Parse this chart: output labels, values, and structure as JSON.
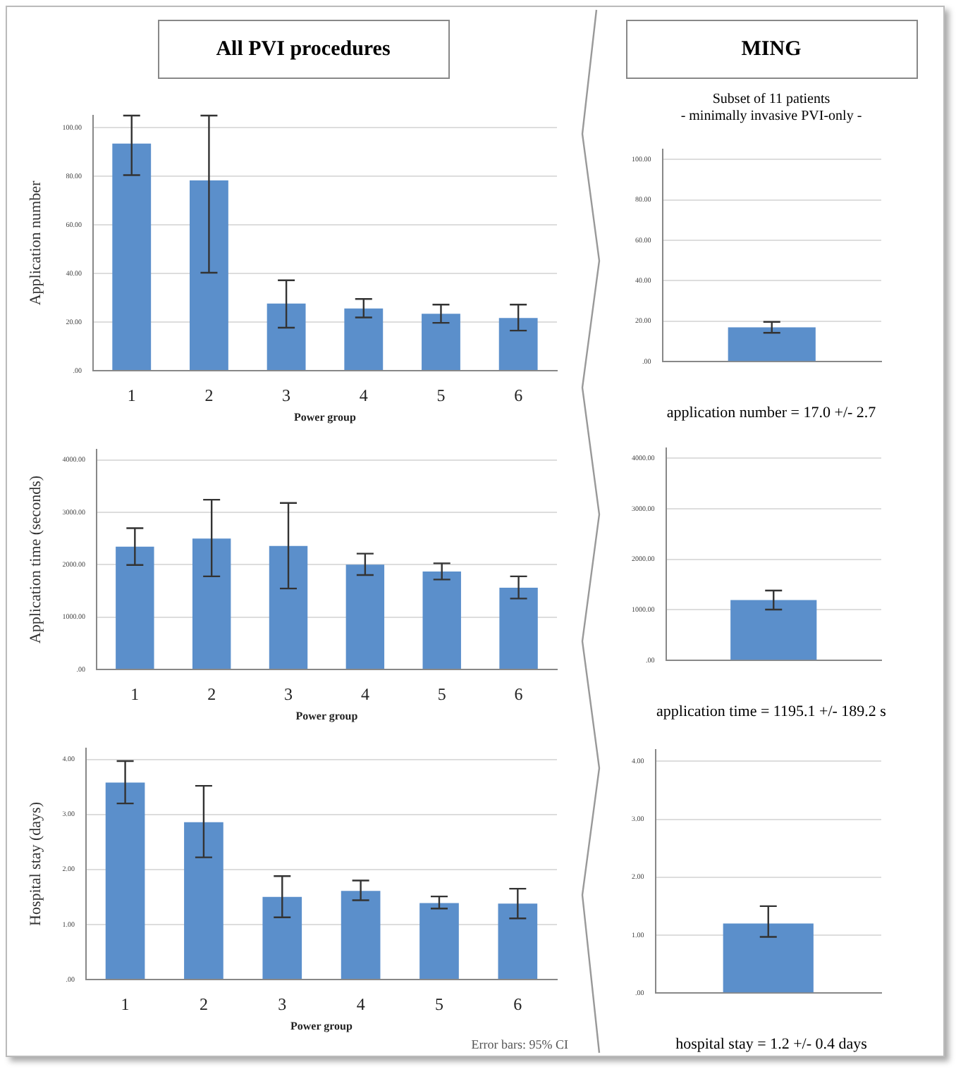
{
  "chart_data": [
    {
      "type": "bar",
      "title": "All PVI procedures",
      "xlabel": "Power group",
      "ylabel": "Application number",
      "categories": [
        "1",
        "2",
        "3",
        "4",
        "5",
        "6"
      ],
      "values": [
        93.5,
        78.3,
        27.6,
        25.6,
        23.4,
        21.7
      ],
      "color": "#5b8fcb",
      "errors": [
        [
          80.5,
          105
        ],
        [
          40.3,
          105
        ],
        [
          17.7,
          37.2
        ],
        [
          21.9,
          29.5
        ],
        [
          19.7,
          27.2
        ],
        [
          16.5,
          27.2
        ]
      ],
      "ylim": [
        0,
        105
      ],
      "yticks": [
        {
          "value": 0,
          "label": ".00"
        },
        {
          "value": 20,
          "label": "20.00"
        },
        {
          "value": 40,
          "label": "40.00"
        },
        {
          "value": 60,
          "label": "60.00"
        },
        {
          "value": 80,
          "label": "80.00"
        },
        {
          "value": 100,
          "label": "100.00"
        }
      ],
      "grid": "y"
    },
    {
      "type": "bar",
      "title": "MING",
      "subtitle": "Subset of 11 patients\n- minimally invasive PVI-only -",
      "categories": [
        null
      ],
      "values": [
        17.0
      ],
      "color": "#5b8fcb",
      "errors": [
        2.7
      ],
      "ylim": [
        0,
        105
      ],
      "yticks": [
        {
          "value": 0,
          "label": ".00"
        },
        {
          "value": 20,
          "label": "20.00"
        },
        {
          "value": 40,
          "label": "40.00"
        },
        {
          "value": 60,
          "label": "60.00"
        },
        {
          "value": 80,
          "label": "80.00"
        },
        {
          "value": 100,
          "label": "100.00"
        }
      ],
      "grid": "y",
      "annotations": [
        "application number = 17.0 +/- 2.7"
      ]
    },
    {
      "type": "bar",
      "xlabel": "Power group",
      "ylabel": "Application time (seconds)",
      "categories": [
        "1",
        "2",
        "3",
        "4",
        "5",
        "6"
      ],
      "values": [
        2344,
        2499,
        2360,
        2004,
        1872,
        1563
      ],
      "color": "#5b8fcb",
      "errors": [
        [
          1996,
          2700
        ],
        [
          1779,
          3242
        ],
        [
          1547,
          3180
        ],
        [
          1803,
          2213
        ],
        [
          1718,
          2027
        ],
        [
          1354,
          1779
        ]
      ],
      "ylim": [
        0,
        4200
      ],
      "yticks": [
        {
          "value": 0,
          "label": ".00"
        },
        {
          "value": 1000,
          "label": "1000.00"
        },
        {
          "value": 2000,
          "label": "2000.00"
        },
        {
          "value": 3000,
          "label": "3000.00"
        },
        {
          "value": 4000,
          "label": "4000.00"
        }
      ],
      "grid": "y"
    },
    {
      "type": "bar",
      "categories": [
        null
      ],
      "values": [
        1195.1
      ],
      "color": "#5b8fcb",
      "errors": [
        189.2
      ],
      "ylim": [
        0,
        4200
      ],
      "yticks": [
        {
          "value": 0,
          "label": ".00"
        },
        {
          "value": 1000,
          "label": "1000.00"
        },
        {
          "value": 2000,
          "label": "2000.00"
        },
        {
          "value": 3000,
          "label": "3000.00"
        },
        {
          "value": 4000,
          "label": "4000.00"
        }
      ],
      "grid": "y",
      "annotations": [
        "application time = 1195.1 +/- 189.2 s"
      ]
    },
    {
      "type": "bar",
      "xlabel": "Power group",
      "ylabel": "Hospital stay (days)",
      "categories": [
        "1",
        "2",
        "3",
        "4",
        "5",
        "6"
      ],
      "values": [
        3.58,
        2.86,
        1.5,
        1.61,
        1.39,
        1.38
      ],
      "color": "#5b8fcb",
      "errors": [
        [
          3.2,
          3.97
        ],
        [
          2.22,
          3.52
        ],
        [
          1.13,
          1.88
        ],
        [
          1.44,
          1.8
        ],
        [
          1.29,
          1.51
        ],
        [
          1.11,
          1.65
        ]
      ],
      "ylim": [
        0,
        4.2
      ],
      "yticks": [
        {
          "value": 0,
          "label": ".00"
        },
        {
          "value": 1,
          "label": "1.00"
        },
        {
          "value": 2,
          "label": "2.00"
        },
        {
          "value": 3,
          "label": "3.00"
        },
        {
          "value": 4,
          "label": "4.00"
        }
      ],
      "grid": "y",
      "annotations": [
        "Error bars: 95% CI"
      ]
    },
    {
      "type": "bar",
      "categories": [
        null
      ],
      "values": [
        1.2
      ],
      "color": "#5b8fcb",
      "errors": [
        [
          0.97,
          1.5
        ]
      ],
      "ylim": [
        0,
        4.2
      ],
      "yticks": [
        {
          "value": 0,
          "label": ".00"
        },
        {
          "value": 1,
          "label": "1.00"
        },
        {
          "value": 2,
          "label": "2.00"
        },
        {
          "value": 3,
          "label": "3.00"
        },
        {
          "value": 4,
          "label": "4.00"
        }
      ],
      "grid": "y",
      "annotations": [
        "hospital stay = 1.2 +/- 0.4 days"
      ]
    }
  ]
}
